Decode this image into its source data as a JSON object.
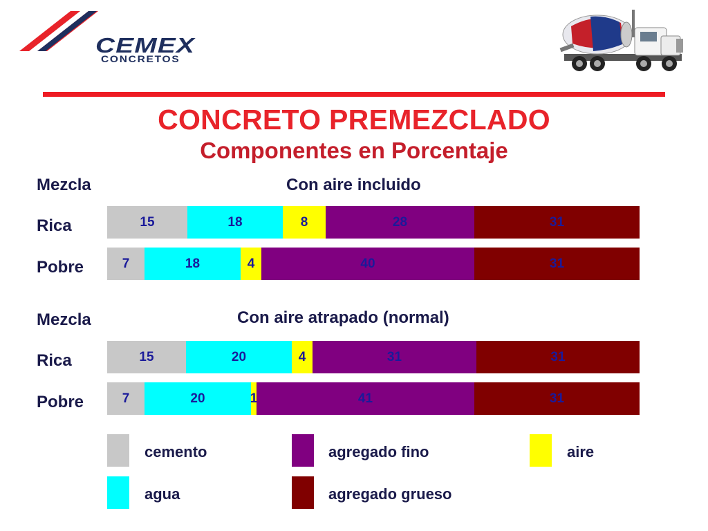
{
  "logo": {
    "word": "CEMEX",
    "sub": "CONCRETOS"
  },
  "title": "CONCRETO PREMEZCLADO",
  "subtitle": "Componentes en Porcentaje",
  "colors": {
    "cemento": "#c8c8c8",
    "agua": "#00ffff",
    "aire": "#ffff00",
    "agregado_fino": "#800080",
    "agregado_grueso": "#800000"
  },
  "chart_data": [
    {
      "type": "bar",
      "orientation": "horizontal",
      "stacked": true,
      "title": "Con aire incluido",
      "ylabel": "Mezcla",
      "categories": [
        "Rica",
        "Pobre"
      ],
      "series": [
        {
          "name": "cemento",
          "values": [
            15,
            7
          ]
        },
        {
          "name": "agua",
          "values": [
            18,
            18
          ]
        },
        {
          "name": "aire",
          "values": [
            8,
            4
          ]
        },
        {
          "name": "agregado fino",
          "values": [
            28,
            40
          ]
        },
        {
          "name": "agregado grueso",
          "values": [
            31,
            31
          ]
        }
      ]
    },
    {
      "type": "bar",
      "orientation": "horizontal",
      "stacked": true,
      "title": "Con aire atrapado (normal)",
      "ylabel": "Mezcla",
      "categories": [
        "Rica",
        "Pobre"
      ],
      "series": [
        {
          "name": "cemento",
          "values": [
            15,
            7
          ]
        },
        {
          "name": "agua",
          "values": [
            20,
            20
          ]
        },
        {
          "name": "aire",
          "values": [
            4,
            1
          ]
        },
        {
          "name": "agregado fino",
          "values": [
            31,
            41
          ]
        },
        {
          "name": "agregado grueso",
          "values": [
            31,
            31
          ]
        }
      ]
    }
  ],
  "legend": [
    {
      "label": "cemento",
      "color": "#c8c8c8"
    },
    {
      "label": "agregado fino",
      "color": "#800080"
    },
    {
      "label": "aire",
      "color": "#ffff00"
    },
    {
      "label": "agua",
      "color": "#00ffff"
    },
    {
      "label": "agregado grueso",
      "color": "#800000"
    }
  ]
}
